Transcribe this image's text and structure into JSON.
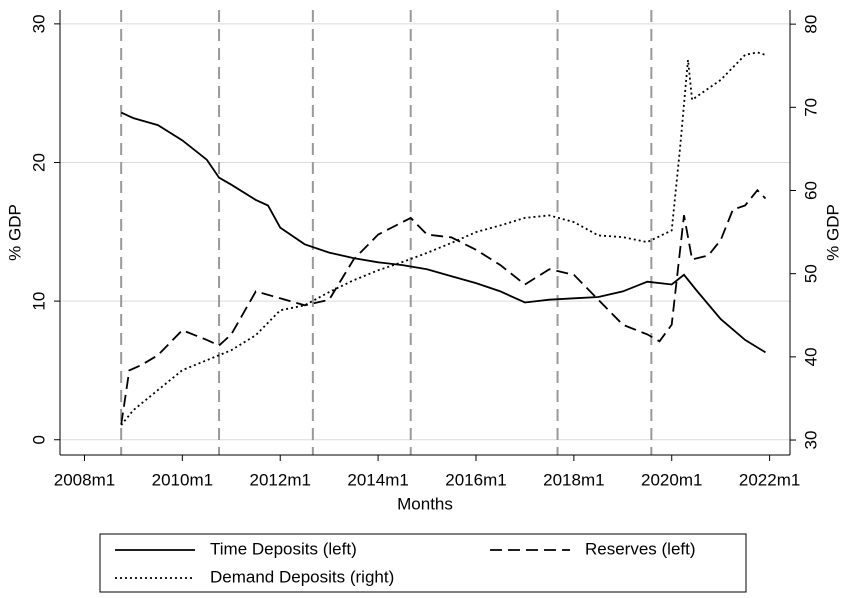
{
  "chart_data": {
    "type": "line",
    "x_label": "Months",
    "y_label": "% GDP",
    "y2_label": "% GDP",
    "xlim": [
      "2007m7",
      "2022m6"
    ],
    "xticks": [
      "2008m1",
      "2010m1",
      "2012m1",
      "2014m1",
      "2016m1",
      "2018m1",
      "2020m1",
      "2022m1"
    ],
    "ylim": [
      -1.1,
      31
    ],
    "yticks": [
      0,
      10,
      20,
      30
    ],
    "y2lim": [
      28.2,
      81.7
    ],
    "y2ticks": [
      30,
      40,
      50,
      60,
      70,
      80
    ],
    "grid": true,
    "legend": "bottom",
    "vlines": [
      "2008m10",
      "2010m10",
      "2012m9",
      "2014m9",
      "2017m9",
      "2019m8"
    ],
    "series": [
      {
        "name": "Time Deposits (left)",
        "color": "#000000",
        "dash": "solid",
        "axis": "y",
        "x": [
          "2008m10",
          "2009m1",
          "2009m7",
          "2010m1",
          "2010m7",
          "2010m10",
          "2011m1",
          "2011m7",
          "2011m10",
          "2012m1",
          "2012m7",
          "2013m1",
          "2013m7",
          "2014m1",
          "2014m7",
          "2015m1",
          "2015m7",
          "2016m1",
          "2016m7",
          "2017m1",
          "2017m7",
          "2018m1",
          "2018m7",
          "2019m1",
          "2019m7",
          "2020m1",
          "2020m4",
          "2020m7",
          "2021m1",
          "2021m7",
          "2021m12"
        ],
        "values": [
          23.6,
          23.2,
          22.7,
          21.6,
          20.2,
          18.9,
          18.4,
          17.3,
          16.9,
          15.3,
          14.1,
          13.5,
          13.1,
          12.8,
          12.6,
          12.3,
          11.8,
          11.3,
          10.7,
          9.9,
          10.1,
          10.2,
          10.3,
          10.7,
          11.4,
          11.2,
          11.9,
          10.8,
          8.7,
          7.2,
          6.3
        ]
      },
      {
        "name": "Reserves (left)",
        "color": "#000000",
        "dash": "dashed",
        "axis": "y",
        "x": [
          "2008m10",
          "2008m12",
          "2009m3",
          "2009m7",
          "2010m1",
          "2010m7",
          "2010m10",
          "2011m1",
          "2011m7",
          "2012m1",
          "2012m7",
          "2013m1",
          "2013m7",
          "2014m1",
          "2014m9",
          "2015m1",
          "2015m7",
          "2016m1",
          "2016m7",
          "2017m1",
          "2017m7",
          "2018m1",
          "2018m7",
          "2019m1",
          "2019m7",
          "2019m10",
          "2020m1",
          "2020m4",
          "2020m6",
          "2020m10",
          "2021m1",
          "2021m4",
          "2021m7",
          "2021m10",
          "2021m12"
        ],
        "values": [
          1.1,
          5.0,
          5.4,
          6.1,
          7.9,
          7.2,
          6.8,
          7.6,
          10.7,
          10.2,
          9.7,
          10.1,
          13.0,
          14.8,
          16.0,
          14.8,
          14.6,
          13.7,
          12.6,
          11.2,
          12.3,
          11.9,
          10.1,
          8.3,
          7.6,
          7.1,
          8.3,
          16.2,
          13.0,
          13.3,
          14.4,
          16.6,
          16.9,
          18.0,
          17.4
        ]
      },
      {
        "name": "Demand Deposits (right)",
        "color": "#000000",
        "dash": "dotted",
        "axis": "y2",
        "x": [
          "2008m10",
          "2009m1",
          "2009m7",
          "2010m1",
          "2010m7",
          "2011m1",
          "2011m7",
          "2012m1",
          "2012m7",
          "2013m1",
          "2013m7",
          "2014m1",
          "2014m7",
          "2015m1",
          "2015m7",
          "2016m1",
          "2016m7",
          "2017m1",
          "2017m7",
          "2018m1",
          "2018m7",
          "2019m1",
          "2019m7",
          "2020m1",
          "2020m3",
          "2020m5",
          "2020m6",
          "2021m1",
          "2021m7",
          "2021m10",
          "2021m12"
        ],
        "values": [
          31.8,
          33.6,
          36.0,
          38.4,
          39.6,
          40.8,
          42.6,
          45.6,
          46.2,
          47.8,
          49.2,
          50.4,
          51.4,
          52.5,
          53.7,
          55.0,
          55.8,
          56.7,
          57.0,
          56.2,
          54.6,
          54.4,
          53.8,
          55.2,
          64.9,
          75.7,
          70.9,
          73.3,
          76.3,
          76.6,
          76.3
        ]
      }
    ]
  }
}
